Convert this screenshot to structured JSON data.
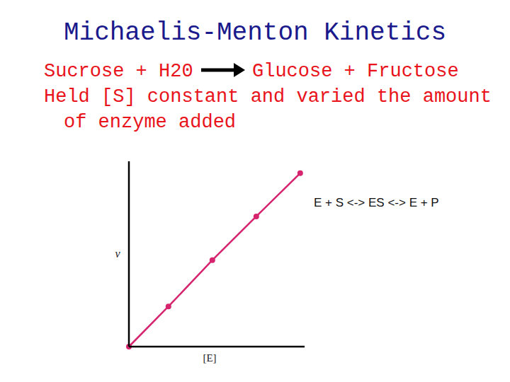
{
  "slide": {
    "title": "Michaelis-Menton Kinetics",
    "reaction": {
      "reactants": "Sucrose + H20",
      "products": "Glucose + Fructose"
    },
    "lines": [
      "Held [S] constant and varied the amount",
      "of enzyme added"
    ]
  },
  "chart_data": {
    "type": "line",
    "x_label": "[E]",
    "y_label": "v",
    "annotation": "E + S <-> ES <-> E + P",
    "x": [
      0,
      0.9,
      1.9,
      2.9,
      3.9
    ],
    "values": [
      0,
      0.91,
      1.96,
      2.95,
      3.93
    ],
    "color": "#d6246e",
    "marker": "circle",
    "line_style": "solid",
    "xlim": [
      0,
      4
    ],
    "ylim": [
      0,
      4.2
    ],
    "tick_labels": false,
    "grid": false
  }
}
